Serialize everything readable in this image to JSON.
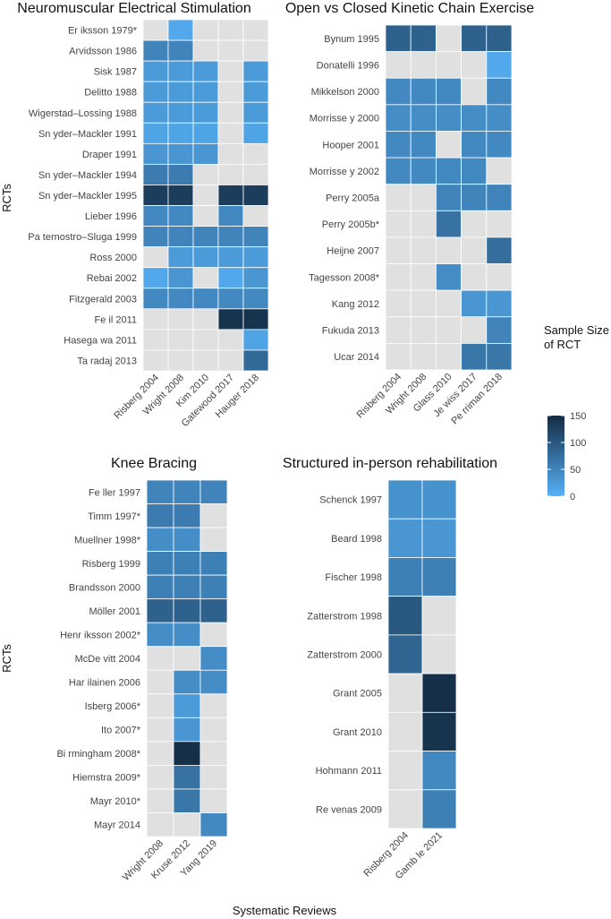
{
  "chart_data": [
    {
      "type": "heatmap",
      "title": "Neuromuscular Electrical Stimulation",
      "ylabel": "RCTs",
      "rows": [
        "Er iksson 1979*",
        "Arvidsson 1986",
        "Sisk 1987",
        "Delitto 1988",
        "Wigerstad–Lossing 1988",
        "Sn yder–Mackler 1991",
        "Draper 1991",
        "Sn yder–Mackler 1994",
        "Sn yder–Mackler 1995",
        "Lieber 1996",
        "Pa ternostro–Sluga 1999",
        "Ross 2000",
        "Rebai 2002",
        "Fitzgerald 2003",
        "Fe il 2011",
        "Hasega wa 2011",
        "Ta radaj 2013"
      ],
      "columns": [
        "Risberg 2004",
        "Wright 2008",
        "Kim 2010",
        "Gatewood 2017",
        "Hauger 2018"
      ],
      "values": [
        [
          null,
          10,
          null,
          null,
          null
        ],
        [
          50,
          50,
          null,
          null,
          null
        ],
        [
          25,
          25,
          25,
          null,
          25
        ],
        [
          25,
          25,
          25,
          null,
          25
        ],
        [
          25,
          25,
          25,
          null,
          25
        ],
        [
          15,
          15,
          15,
          null,
          15
        ],
        [
          30,
          30,
          30,
          null,
          null
        ],
        [
          60,
          60,
          null,
          null,
          null
        ],
        [
          130,
          130,
          null,
          130,
          130
        ],
        [
          45,
          45,
          null,
          45,
          null
        ],
        [
          50,
          50,
          50,
          50,
          50
        ],
        [
          null,
          25,
          25,
          25,
          25
        ],
        [
          10,
          30,
          null,
          10,
          30
        ],
        [
          45,
          45,
          45,
          45,
          45
        ],
        [
          null,
          null,
          null,
          140,
          140
        ],
        [
          null,
          null,
          null,
          null,
          15
        ],
        [
          null,
          null,
          null,
          null,
          80
        ]
      ]
    },
    {
      "type": "heatmap",
      "title": "Open vs Closed Kinetic Chain Exercise",
      "ylabel": "",
      "rows": [
        "Bynum 1995",
        "Donatelli 1996",
        "Mikkelson 2000",
        "Morrisse y 2000",
        "Hooper 2001",
        "Morrisse y 2002",
        "Perry 2005a",
        "Perry 2005b*",
        "Heijne 2007",
        "Tagesson 2008*",
        "Kang 2012",
        "Fukuda 2013",
        "Ucar 2014"
      ],
      "columns": [
        "Risberg 2004",
        "Wright 2008",
        "Glass 2010",
        "Je wiss 2017",
        "Pe rriman 2018"
      ],
      "values": [
        [
          90,
          90,
          null,
          90,
          90
        ],
        [
          null,
          null,
          null,
          null,
          10
        ],
        [
          45,
          45,
          45,
          null,
          45
        ],
        [
          40,
          40,
          40,
          40,
          40
        ],
        [
          45,
          45,
          null,
          45,
          45
        ],
        [
          45,
          45,
          45,
          45,
          null
        ],
        [
          null,
          null,
          50,
          50,
          50
        ],
        [
          null,
          null,
          70,
          null,
          null
        ],
        [
          null,
          null,
          null,
          null,
          75
        ],
        [
          null,
          null,
          40,
          null,
          null
        ],
        [
          null,
          null,
          null,
          30,
          30
        ],
        [
          null,
          null,
          null,
          null,
          50
        ],
        [
          null,
          null,
          null,
          65,
          65
        ]
      ]
    },
    {
      "type": "heatmap",
      "title": "Knee Bracing",
      "ylabel": "RCTs",
      "rows": [
        "Fe ller 1997",
        "Timm 1997*",
        "Muellner 1998*",
        "Risberg 1999",
        "Brandsson 2000",
        "Möller 2001",
        "Henr iksson 2002*",
        "McDe vitt 2004",
        "Har ilainen 2006",
        "Isberg 2006*",
        "Ito 2007*",
        "Bi rmingham 2008*",
        "Hiemstra 2009*",
        "Mayr 2010*",
        "Mayr 2014"
      ],
      "columns": [
        "Wright 2008",
        "Kruse 2012",
        "Yang 2019"
      ],
      "values": [
        [
          50,
          50,
          50
        ],
        [
          60,
          60,
          null
        ],
        [
          40,
          40,
          null
        ],
        [
          55,
          55,
          55
        ],
        [
          55,
          55,
          55
        ],
        [
          90,
          90,
          90
        ],
        [
          40,
          40,
          null
        ],
        [
          null,
          null,
          40
        ],
        [
          null,
          40,
          40
        ],
        [
          null,
          25,
          null
        ],
        [
          null,
          30,
          null
        ],
        [
          null,
          145,
          null
        ],
        [
          null,
          70,
          null
        ],
        [
          null,
          65,
          null
        ],
        [
          null,
          null,
          45
        ]
      ]
    },
    {
      "type": "heatmap",
      "title": "Structured in-person rehabilitation",
      "ylabel": "",
      "rows": [
        "Schenck 1997",
        "Beard 1998",
        "Fischer 1998",
        "Zatterstrom 1998",
        "Zatterstrom 2000",
        "Grant 2005",
        "Grant 2010",
        "Hohmann 2011",
        "Re venas 2009"
      ],
      "columns": [
        "Risberg 2004",
        "Gamb le 2021"
      ],
      "values": [
        [
          35,
          35
        ],
        [
          30,
          30
        ],
        [
          55,
          55
        ],
        [
          100,
          null
        ],
        [
          85,
          null
        ],
        [
          null,
          145
        ],
        [
          null,
          140
        ],
        [
          null,
          45
        ],
        [
          null,
          55
        ]
      ]
    }
  ],
  "shared_xlabel": "Systematic Reviews",
  "legend": {
    "title_line1": "Sample Size",
    "title_line2": "of RCT",
    "ticks": [
      "150",
      "100",
      "50",
      "0"
    ],
    "min": 0,
    "max": 150,
    "low_color": "#56b1f7",
    "high_color": "#132b43"
  },
  "colors": {
    "missing": "#e0e0e0",
    "grid": "#ffffff"
  }
}
